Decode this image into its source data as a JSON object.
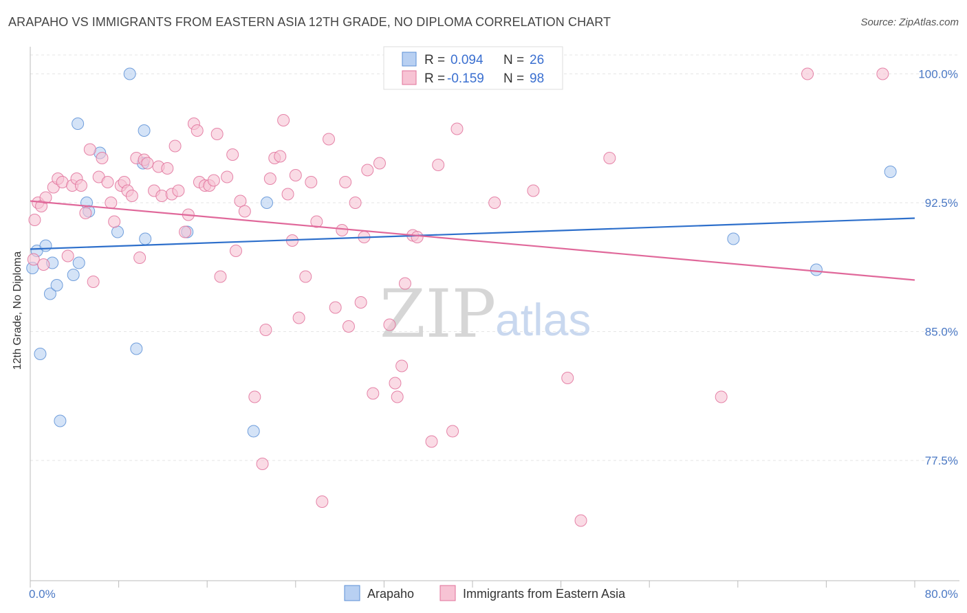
{
  "title": "ARAPAHO VS IMMIGRANTS FROM EASTERN ASIA 12TH GRADE, NO DIPLOMA CORRELATION CHART",
  "source": "Source: ZipAtlas.com",
  "watermark": {
    "zip": "ZIP",
    "atlas": "atlas"
  },
  "colors": {
    "blue": "#5b8fd6",
    "blue_fill": "#b8d0f2",
    "pink": "#e0709a",
    "pink_fill": "#f7c3d4",
    "blue_line": "#2d6fcb",
    "pink_line": "#e0689a",
    "tick_text": "#4a78c4"
  },
  "legend": {
    "rows": [
      {
        "r_label": "R =",
        "r_value": "0.094",
        "n_label": "N =",
        "n_value": "26"
      },
      {
        "r_label": "R =",
        "r_value": "-0.159",
        "n_label": "N =",
        "n_value": "98"
      }
    ]
  },
  "bottom_legend": [
    "Arapaho",
    "Immigrants from Eastern Asia"
  ],
  "chart_data": {
    "type": "scatter",
    "title": "ARAPAHO VS IMMIGRANTS FROM EASTERN ASIA 12TH GRADE, NO DIPLOMA CORRELATION CHART",
    "xlabel": "",
    "ylabel": "12th Grade, No Diploma",
    "xlim": [
      0,
      80
    ],
    "ylim": [
      70.5,
      101.5
    ],
    "x_tick_labels": [
      "0.0%",
      "80.0%"
    ],
    "y_ticks": [
      77.5,
      85.0,
      92.5,
      100.0
    ],
    "y_tick_labels": [
      "77.5%",
      "85.0%",
      "92.5%",
      "100.0%"
    ],
    "grid": true,
    "series": [
      {
        "name": "Arapaho",
        "trend": [
          [
            0,
            89.8
          ],
          [
            80,
            91.6
          ]
        ],
        "points": [
          [
            0.2,
            88.7
          ],
          [
            0.6,
            89.7
          ],
          [
            1.4,
            90.0
          ],
          [
            1.8,
            87.2
          ],
          [
            2.0,
            89.0
          ],
          [
            2.4,
            87.7
          ],
          [
            0.9,
            83.7
          ],
          [
            2.7,
            79.8
          ],
          [
            3.9,
            88.3
          ],
          [
            4.4,
            89.0
          ],
          [
            4.3,
            97.1
          ],
          [
            5.1,
            92.5
          ],
          [
            5.3,
            92.0
          ],
          [
            6.3,
            95.4
          ],
          [
            7.9,
            90.8
          ],
          [
            9.0,
            100.0
          ],
          [
            10.3,
            96.7
          ],
          [
            10.2,
            94.8
          ],
          [
            10.4,
            90.4
          ],
          [
            9.6,
            84.0
          ],
          [
            14.2,
            90.8
          ],
          [
            20.2,
            79.2
          ],
          [
            21.4,
            92.5
          ],
          [
            63.6,
            90.4
          ],
          [
            71.1,
            88.6
          ],
          [
            77.8,
            94.3
          ]
        ]
      },
      {
        "name": "Immigrants from Eastern Asia",
        "trend": [
          [
            0,
            92.6
          ],
          [
            80,
            88.0
          ]
        ],
        "points": [
          [
            0.4,
            91.5
          ],
          [
            0.7,
            92.5
          ],
          [
            1.0,
            92.3
          ],
          [
            1.4,
            92.8
          ],
          [
            2.1,
            93.4
          ],
          [
            2.5,
            93.9
          ],
          [
            2.9,
            93.7
          ],
          [
            3.4,
            89.4
          ],
          [
            3.8,
            93.5
          ],
          [
            4.2,
            93.9
          ],
          [
            4.6,
            93.5
          ],
          [
            5.0,
            91.9
          ],
          [
            5.4,
            95.6
          ],
          [
            5.7,
            87.9
          ],
          [
            6.5,
            95.1
          ],
          [
            6.2,
            94.0
          ],
          [
            7.0,
            93.7
          ],
          [
            7.3,
            92.5
          ],
          [
            7.6,
            91.4
          ],
          [
            8.2,
            93.5
          ],
          [
            8.5,
            93.7
          ],
          [
            8.8,
            93.2
          ],
          [
            9.2,
            92.9
          ],
          [
            9.6,
            95.1
          ],
          [
            9.9,
            89.3
          ],
          [
            10.3,
            95.0
          ],
          [
            10.6,
            94.8
          ],
          [
            11.2,
            93.2
          ],
          [
            11.6,
            94.6
          ],
          [
            11.9,
            92.9
          ],
          [
            12.4,
            94.5
          ],
          [
            12.8,
            93.0
          ],
          [
            13.1,
            95.8
          ],
          [
            13.4,
            93.2
          ],
          [
            14.0,
            90.8
          ],
          [
            14.3,
            91.8
          ],
          [
            14.8,
            97.1
          ],
          [
            15.1,
            96.7
          ],
          [
            15.3,
            93.7
          ],
          [
            15.8,
            93.5
          ],
          [
            16.2,
            93.5
          ],
          [
            16.6,
            93.8
          ],
          [
            16.9,
            96.5
          ],
          [
            17.2,
            88.2
          ],
          [
            17.8,
            94.0
          ],
          [
            18.3,
            95.3
          ],
          [
            18.6,
            89.7
          ],
          [
            19.0,
            92.6
          ],
          [
            19.4,
            92.0
          ],
          [
            20.3,
            81.2
          ],
          [
            21.0,
            77.3
          ],
          [
            21.3,
            85.1
          ],
          [
            21.7,
            93.9
          ],
          [
            22.1,
            95.1
          ],
          [
            22.6,
            95.2
          ],
          [
            22.9,
            97.3
          ],
          [
            23.3,
            93.0
          ],
          [
            23.7,
            90.3
          ],
          [
            24.0,
            94.1
          ],
          [
            24.3,
            85.8
          ],
          [
            24.9,
            88.2
          ],
          [
            25.4,
            93.7
          ],
          [
            25.9,
            91.4
          ],
          [
            26.4,
            75.1
          ],
          [
            27.0,
            96.2
          ],
          [
            27.6,
            86.4
          ],
          [
            28.2,
            90.9
          ],
          [
            28.5,
            93.7
          ],
          [
            28.8,
            85.3
          ],
          [
            29.4,
            92.5
          ],
          [
            29.9,
            86.7
          ],
          [
            30.2,
            90.5
          ],
          [
            30.5,
            94.4
          ],
          [
            31.0,
            81.4
          ],
          [
            31.6,
            94.8
          ],
          [
            32.5,
            85.4
          ],
          [
            33.0,
            82.0
          ],
          [
            33.2,
            81.2
          ],
          [
            33.6,
            83.0
          ],
          [
            33.9,
            87.8
          ],
          [
            34.6,
            90.6
          ],
          [
            35.0,
            90.5
          ],
          [
            36.3,
            78.6
          ],
          [
            36.9,
            94.7
          ],
          [
            37.8,
            100.0
          ],
          [
            38.2,
            79.2
          ],
          [
            38.6,
            96.8
          ],
          [
            42.3,
            100.0
          ],
          [
            42.0,
            92.5
          ],
          [
            45.5,
            93.2
          ],
          [
            48.6,
            82.3
          ],
          [
            49.8,
            74.0
          ],
          [
            52.4,
            95.1
          ],
          [
            62.5,
            81.2
          ],
          [
            70.3,
            100.0
          ],
          [
            77.1,
            100.0
          ],
          [
            0.3,
            89.2
          ],
          [
            1.2,
            88.9
          ]
        ]
      }
    ]
  }
}
